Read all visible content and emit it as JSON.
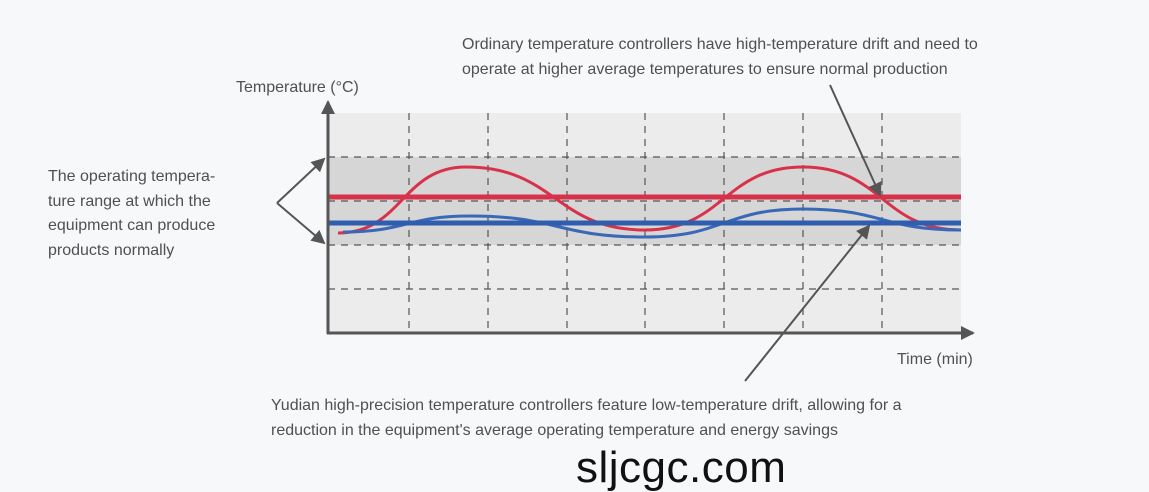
{
  "axes": {
    "y_label": "Temperature (°C)",
    "x_label": "Time (min)"
  },
  "annotations": {
    "top": [
      "Ordinary temperature controllers have high-temperature drift and need to",
      "operate at higher average temperatures to ensure normal production"
    ],
    "bottom": [
      "Yudian high-precision temperature controllers feature low-temperature drift, allowing for a",
      "reduction in the equipment's average operating temperature and energy savings"
    ],
    "left": [
      "The operating tempera-",
      "ture range at which the",
      "equipment can produce",
      "products normally"
    ]
  },
  "watermark": "sljcgc.com",
  "colors": {
    "ordinary": "#d8324a",
    "yudian": "#2f5eae",
    "band": "#d6d6d6",
    "plot_bg": "#ececed",
    "axis": "#555555"
  }
}
